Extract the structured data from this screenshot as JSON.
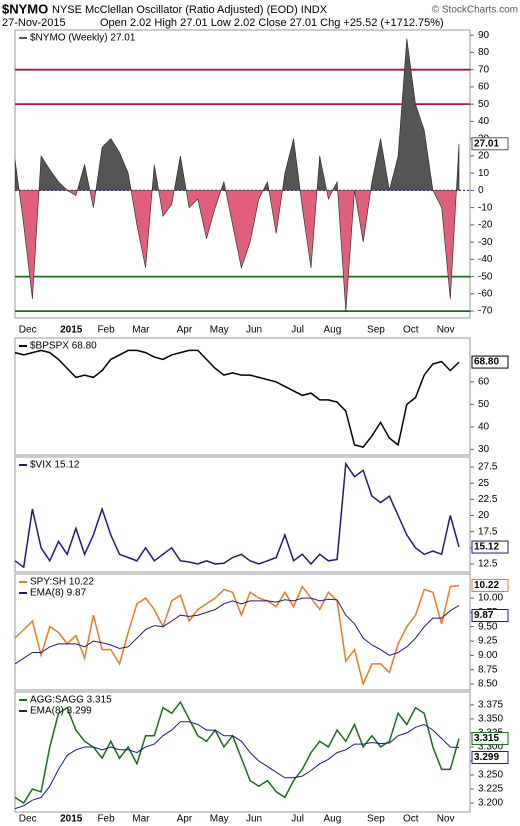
{
  "header": {
    "symbol": "$NYMO",
    "description": "NYSE McClellan Oscillator (Ratio Adjusted) (EOD) INDX",
    "date": "27-Nov-2015",
    "quote": "Open 2.02  High 27.01  Low 2.02  Close 27.01  Chg +25.52 (+1712.75%)",
    "watermark": "© StockCharts.com"
  },
  "chart_data": [
    {
      "type": "area",
      "categories": [
        null,
        "Dec",
        null,
        null,
        null,
        null,
        "2015",
        null,
        null,
        null,
        "Feb",
        null,
        null,
        null,
        "Mar",
        null,
        null,
        null,
        null,
        "Apr",
        null,
        null,
        null,
        "May",
        null,
        null,
        null,
        "Jun",
        null,
        null,
        null,
        null,
        "Jul",
        null,
        null,
        null,
        "Aug",
        null,
        null,
        null,
        null,
        "Sep",
        null,
        null,
        null,
        "Oct",
        null,
        null,
        null,
        "Nov",
        null,
        null
      ],
      "series": [
        {
          "name": "$NYMO (Weekly) 27.01",
          "color": "#555555",
          "color_below": "#e0607c",
          "last_label": "27.01",
          "values": [
            18,
            -20,
            -63,
            20,
            12,
            5,
            0,
            -3,
            15,
            -10,
            25,
            30,
            22,
            10,
            -20,
            -45,
            15,
            -15,
            -8,
            20,
            -10,
            -5,
            -28,
            -10,
            5,
            -20,
            -45,
            -30,
            -5,
            5,
            -25,
            10,
            30,
            -10,
            -45,
            20,
            -5,
            5,
            -70,
            0,
            -30,
            5,
            30,
            0,
            20,
            88,
            50,
            35,
            0,
            -10,
            -63,
            27.01
          ]
        }
      ],
      "ylim": [
        -74,
        93
      ],
      "yticks": [
        90,
        80,
        70,
        60,
        50,
        40,
        30,
        20,
        10,
        0,
        -10,
        -20,
        -30,
        -40,
        -50,
        -60,
        -70
      ],
      "hlines": [
        {
          "value": 70,
          "color": "#b5133f"
        },
        {
          "value": 50,
          "color": "#b5133f"
        },
        {
          "value": 0,
          "color": "#2233aa",
          "style": "dotted"
        },
        {
          "value": -50,
          "color": "#1a6b1a"
        },
        {
          "value": -70,
          "color": "#1a6b1a"
        }
      ]
    },
    {
      "type": "line",
      "series": [
        {
          "name": "$BPSPX 68.80",
          "color": "#000000",
          "last_label": "68.80",
          "values": [
            73,
            72,
            73,
            74,
            73,
            70,
            66,
            62,
            63,
            62,
            65,
            70,
            72,
            74,
            74,
            73,
            71,
            70,
            72,
            73,
            74,
            74,
            70,
            66,
            63,
            64,
            63,
            63,
            62,
            61,
            60,
            58,
            56,
            54,
            55,
            52,
            52,
            51,
            47,
            32,
            31,
            36,
            42,
            35,
            32,
            50,
            53,
            63,
            68,
            69,
            65,
            68.8
          ]
        }
      ],
      "ylim": [
        27.5,
        79.5
      ],
      "yticks": [
        60,
        50,
        40,
        30
      ]
    },
    {
      "type": "line",
      "series": [
        {
          "name": "$VIX 15.12",
          "color": "#1a1a80",
          "last_label": "15.12",
          "values": [
            13,
            12,
            21,
            15,
            13,
            16,
            14,
            18,
            14,
            17,
            21,
            17,
            14,
            13.5,
            13,
            15,
            13,
            14,
            15,
            13,
            12.8,
            12.5,
            13,
            12.5,
            12.6,
            13.5,
            14,
            13,
            12.5,
            13,
            13.5,
            17,
            13,
            14,
            12.5,
            14,
            13,
            13.2,
            28,
            26,
            27,
            23,
            22,
            23,
            20,
            17,
            15,
            14,
            14.5,
            14,
            20,
            15.12
          ]
        }
      ],
      "ylim": [
        11.26,
        29.05
      ],
      "yticks": [
        27.5,
        25,
        22.5,
        20,
        17.5,
        15,
        12.5
      ]
    },
    {
      "type": "line",
      "series": [
        {
          "name": "SPY:SH 10.22",
          "color": "#f07820",
          "last_label": "10.22",
          "values": [
            9.3,
            9.45,
            9.6,
            9.0,
            9.5,
            9.4,
            9.2,
            9.35,
            8.95,
            9.7,
            9.1,
            9.1,
            8.85,
            9.4,
            9.9,
            10.0,
            9.8,
            9.5,
            9.95,
            10.05,
            9.6,
            9.8,
            9.9,
            10.0,
            10.15,
            10.1,
            9.7,
            10.1,
            10.0,
            9.95,
            9.85,
            10.1,
            9.85,
            10.2,
            10.0,
            9.8,
            10.1,
            9.95,
            8.9,
            9.1,
            8.5,
            8.85,
            8.85,
            8.7,
            9.2,
            9.5,
            9.7,
            10.15,
            10.1,
            9.55,
            10.2,
            10.22
          ]
        },
        {
          "name": "EMA(8) 9.87",
          "color": "#1a1a80",
          "last_label": "9.87",
          "values": [
            8.85,
            8.95,
            9.05,
            9.05,
            9.15,
            9.2,
            9.2,
            9.2,
            9.15,
            9.25,
            9.22,
            9.18,
            9.12,
            9.15,
            9.3,
            9.45,
            9.52,
            9.5,
            9.6,
            9.7,
            9.68,
            9.7,
            9.75,
            9.8,
            9.9,
            9.95,
            9.9,
            9.95,
            9.95,
            9.95,
            9.93,
            9.97,
            9.95,
            10.0,
            10.0,
            9.95,
            9.98,
            9.97,
            9.7,
            9.55,
            9.3,
            9.18,
            9.1,
            9.0,
            9.05,
            9.15,
            9.3,
            9.5,
            9.65,
            9.65,
            9.78,
            9.87
          ]
        }
      ],
      "ylim": [
        8.395,
        10.42
      ],
      "yticks": [
        {
          "value": 10,
          "label": "10.00"
        },
        9.75,
        {
          "value": 9.5,
          "label": "9.50"
        },
        9.25,
        {
          "value": 9,
          "label": "9.00"
        },
        8.75,
        {
          "value": 8.5,
          "label": "8.50"
        }
      ]
    },
    {
      "type": "line",
      "categories": [
        null,
        "Dec",
        null,
        null,
        null,
        null,
        "2015",
        null,
        null,
        null,
        "Feb",
        null,
        null,
        null,
        "Mar",
        null,
        null,
        null,
        null,
        "Apr",
        null,
        null,
        null,
        "May",
        null,
        null,
        null,
        "Jun",
        null,
        null,
        null,
        null,
        "Jul",
        null,
        null,
        null,
        "Aug",
        null,
        null,
        null,
        null,
        "Sep",
        null,
        null,
        null,
        "Oct",
        null,
        null,
        null,
        "Nov",
        null,
        null
      ],
      "series": [
        {
          "name": "AGG:SAGG 3.315",
          "color": "#1a6b1a",
          "last_label": "3.315",
          "values": [
            3.21,
            3.2,
            3.225,
            3.22,
            3.3,
            3.36,
            3.37,
            3.33,
            3.31,
            3.3,
            3.28,
            3.31,
            3.28,
            3.3,
            3.27,
            3.32,
            3.32,
            3.37,
            3.36,
            3.38,
            3.35,
            3.32,
            3.31,
            3.33,
            3.3,
            3.32,
            3.28,
            3.24,
            3.23,
            3.24,
            3.22,
            3.21,
            3.24,
            3.26,
            3.29,
            3.31,
            3.3,
            3.33,
            3.31,
            3.34,
            3.3,
            3.32,
            3.3,
            3.31,
            3.36,
            3.34,
            3.37,
            3.36,
            3.3,
            3.26,
            3.26,
            3.315
          ]
        },
        {
          "name": "EMA(8) 3.299",
          "color": "#1a1a80",
          "last_label": "3.299",
          "values": [
            3.19,
            3.195,
            3.205,
            3.21,
            3.23,
            3.26,
            3.285,
            3.295,
            3.3,
            3.3,
            3.295,
            3.3,
            3.295,
            3.295,
            3.29,
            3.3,
            3.305,
            3.32,
            3.33,
            3.345,
            3.345,
            3.34,
            3.33,
            3.33,
            3.32,
            3.32,
            3.31,
            3.29,
            3.275,
            3.265,
            3.255,
            3.245,
            3.245,
            3.248,
            3.258,
            3.27,
            3.278,
            3.29,
            3.295,
            3.305,
            3.305,
            3.308,
            3.306,
            3.307,
            3.32,
            3.325,
            3.335,
            3.34,
            3.33,
            3.315,
            3.3,
            3.299
          ]
        }
      ],
      "ylim": [
        3.184,
        3.398
      ],
      "yticks": [
        3.375,
        {
          "value": 3.35,
          "label": "3.350"
        },
        3.325,
        {
          "value": 3.3,
          "label": "3.300"
        },
        3.275,
        {
          "value": 3.25,
          "label": "3.250"
        },
        3.225,
        {
          "value": 3.2,
          "label": "3.200"
        }
      ]
    }
  ]
}
